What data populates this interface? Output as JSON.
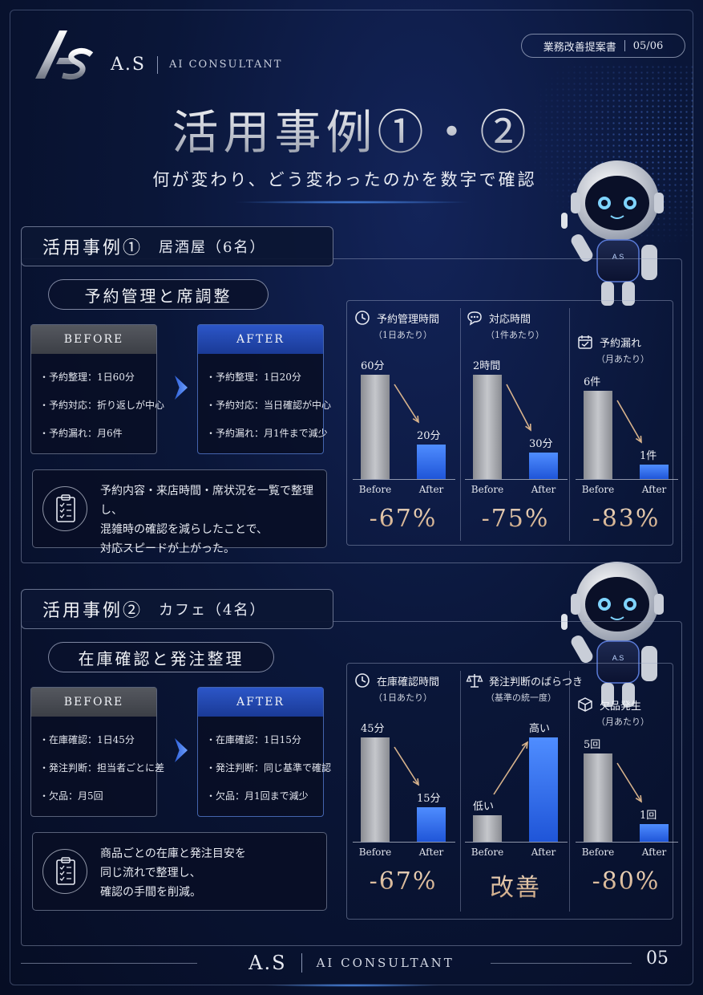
{
  "header": {
    "brand": "A.S",
    "brand_sub": "AI CONSULTANT",
    "doc_label": "業務改善提案書",
    "doc_page": "05/06",
    "title": "活用事例①・②",
    "subtitle": "何が変わり、どう変わったのかを数字で確認"
  },
  "case1": {
    "case_label": "活用事例①",
    "place": "居酒屋（6名）",
    "topic": "予約管理と席調整",
    "before_title": "BEFORE",
    "after_title": "AFTER",
    "before_items": [
      "・予約整理：1日60分",
      "・予約対応：折り返しが中心",
      "・予約漏れ：月6件"
    ],
    "after_items": [
      "・予約整理：1日20分",
      "・予約対応：当日確認が中心",
      "・予約漏れ：月1件まで減少"
    ],
    "note_lines": [
      "予約内容・来店時間・席状況を一覧で整理し、",
      "混雑時の確認を減らしたことで、",
      "対応スピードが上がった。"
    ],
    "metrics": [
      {
        "icon": "clock-icon",
        "title": "予約管理時間",
        "unit": "（1日あたり）",
        "before_label": "60分",
        "after_label": "20分",
        "before": 60,
        "after": 20,
        "result": "-67%"
      },
      {
        "icon": "chat-icon",
        "title": "対応時間",
        "unit": "（1件あたり）",
        "before_label": "2時間",
        "after_label": "30分",
        "before": 120,
        "after": 30,
        "result": "-75%"
      },
      {
        "icon": "calendar-check-icon",
        "title": "予約漏れ",
        "unit": "（月あたり）",
        "before_label": "6件",
        "after_label": "1件",
        "before": 6,
        "after": 1,
        "result": "-83%"
      }
    ]
  },
  "case2": {
    "case_label": "活用事例②",
    "place": "カフェ（4名）",
    "topic": "在庫確認と発注整理",
    "before_title": "BEFORE",
    "after_title": "AFTER",
    "before_items": [
      "・在庫確認：1日45分",
      "・発注判断：担当者ごとに差",
      "・欠品：月5回"
    ],
    "after_items": [
      "・在庫確認：1日15分",
      "・発注判断：同じ基準で確認",
      "・欠品：月1回まで減少"
    ],
    "note_lines": [
      "商品ごとの在庫と発注目安を",
      "同じ流れで整理し、",
      "確認の手間を削減。"
    ],
    "metrics": [
      {
        "icon": "clock-icon",
        "title": "在庫確認時間",
        "unit": "（1日あたり）",
        "before_label": "45分",
        "after_label": "15分",
        "before": 45,
        "after": 15,
        "result": "-67%"
      },
      {
        "icon": "scale-icon",
        "title": "発注判断のばらつき",
        "unit": "（基準の統一度）",
        "before_label": "低い",
        "after_label": "高い",
        "before": 0.25,
        "after": 1,
        "result": "改善"
      },
      {
        "icon": "box-icon",
        "title": "欠品発生",
        "unit": "（月あたり）",
        "before_label": "5回",
        "after_label": "1回",
        "before": 5,
        "after": 1,
        "result": "-80%"
      }
    ]
  },
  "axis": {
    "before": "Before",
    "after": "After"
  },
  "footer": {
    "brand": "A.S",
    "brand_sub": "AI CONSULTANT",
    "page": "05"
  }
}
